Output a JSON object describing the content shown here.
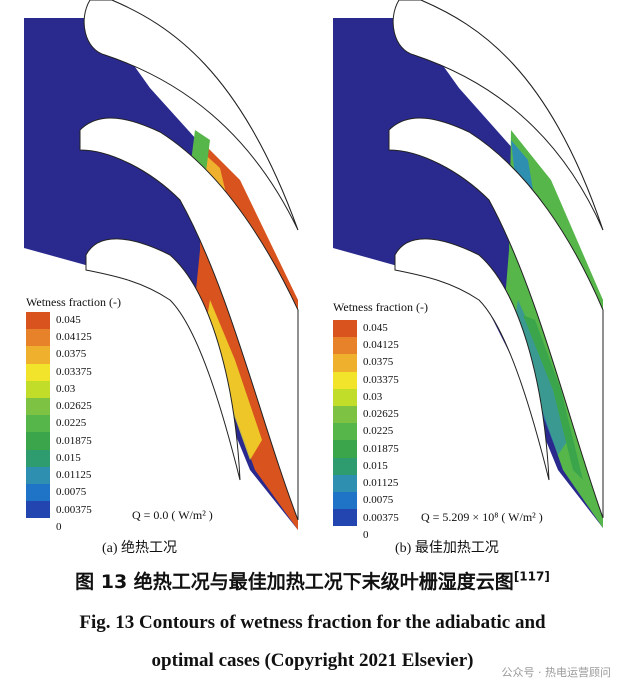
{
  "legend": {
    "title": "Wetness fraction (-)",
    "levels": [
      "0.045",
      "0.04125",
      "0.0375",
      "0.03375",
      "0.03",
      "0.02625",
      "0.0225",
      "0.01875",
      "0.015",
      "0.01125",
      "0.0075",
      "0.00375",
      "0"
    ],
    "colors": [
      "#d9531e",
      "#e8822a",
      "#efb02e",
      "#f2e32b",
      "#c2dc2a",
      "#7dc242",
      "#56b649",
      "#3aa54b",
      "#2e9c6f",
      "#2f8fb1",
      "#1f74c8",
      "#2345b0",
      "#2a2a8e"
    ]
  },
  "panels": [
    {
      "sub_caption": "(a)  绝热工况",
      "q_label": "Q = 0.0 ( W/m² )"
    },
    {
      "sub_caption": "(b)  最佳加热工况",
      "q_label": "Q = 5.209 × 10⁸ ( W/m² )"
    }
  ],
  "caption": {
    "zh": "图 13   绝热工况与最佳加热工况下末级叶栅湿度云图",
    "zh_ref": "[117]",
    "en_line1": "Fig. 13    Contours of wetness fraction for the adiabatic and",
    "en_line2": "optimal cases (Copyright 2021 Elsevier)"
  },
  "watermark": "公众号 · 热电运营顾问"
}
